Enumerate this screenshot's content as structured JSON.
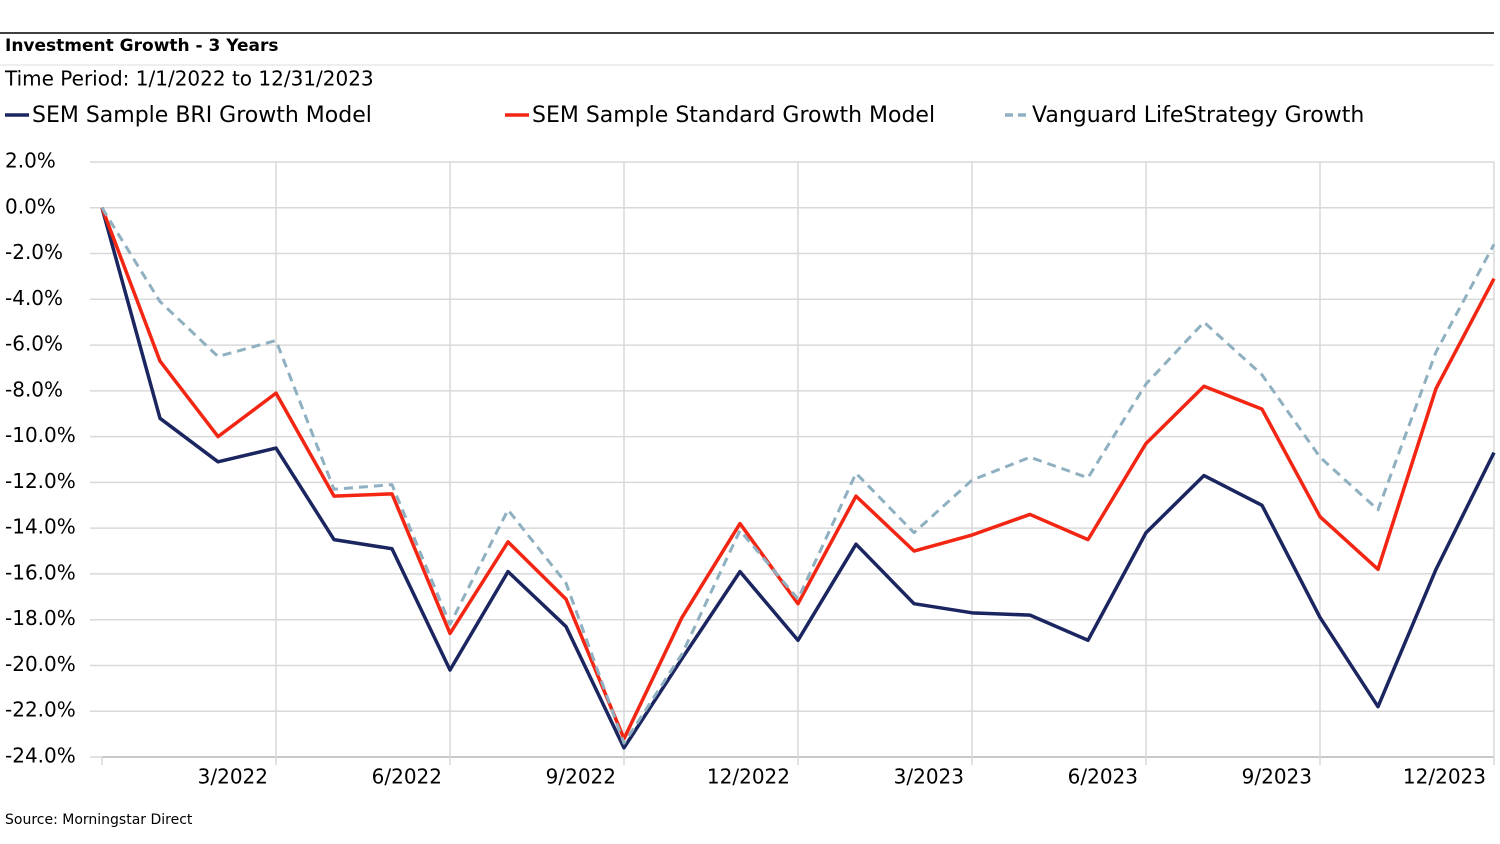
{
  "chart_data": {
    "type": "line",
    "title": "Investment Growth - 3 Years",
    "subtitle": "Time Period: 1/1/2022 to 12/31/2023",
    "source": "Source: Morningstar Direct",
    "categories": [
      null,
      null,
      null,
      "3/2022",
      null,
      null,
      "6/2022",
      null,
      null,
      "9/2022",
      null,
      null,
      "12/2022",
      null,
      null,
      "3/2023",
      null,
      null,
      "6/2023",
      null,
      null,
      "9/2023",
      null,
      null,
      "12/2023"
    ],
    "series": [
      {
        "name": "SEM Sample BRI Growth Model",
        "color": "#1b2560",
        "dashed": false,
        "values": [
          0,
          -9.2,
          -11.1,
          -10.5,
          -14.5,
          -14.9,
          -20.2,
          -15.9,
          -18.3,
          -23.6,
          -19.7,
          -15.9,
          -18.9,
          -14.7,
          -17.3,
          -17.7,
          -17.8,
          -18.9,
          -14.2,
          -11.7,
          -13.0,
          -17.9,
          -21.8,
          -15.8,
          -10.7
        ]
      },
      {
        "name": "SEM Sample Standard Growth Model",
        "color": "#f22613",
        "dashed": false,
        "values": [
          0,
          -6.7,
          -10.0,
          -8.1,
          -12.6,
          -12.5,
          -18.6,
          -14.6,
          -17.1,
          -23.2,
          -17.9,
          -13.8,
          -17.3,
          -12.6,
          -15.0,
          -14.3,
          -13.4,
          -14.5,
          -10.3,
          -7.8,
          -8.8,
          -13.5,
          -15.8,
          -7.9,
          -3.1
        ]
      },
      {
        "name": "Vanguard LifeStrategy Growth",
        "color": "#8fb0c0",
        "dashed": true,
        "values": [
          0,
          -4.1,
          -6.5,
          -5.8,
          -12.3,
          -12.1,
          -18.2,
          -13.2,
          -16.4,
          -23.4,
          -19.5,
          -14.1,
          -17.1,
          -11.6,
          -14.2,
          -11.9,
          -10.9,
          -11.8,
          -7.7,
          -5.0,
          -7.3,
          -10.9,
          -13.2,
          -6.3,
          -1.6
        ]
      }
    ],
    "ylim": [
      -24,
      2
    ],
    "yticks": [
      {
        "value": 2,
        "label": "2.0%"
      },
      {
        "value": 0,
        "label": "0.0%"
      },
      {
        "value": -2,
        "label": "-2.0%"
      },
      {
        "value": -4,
        "label": "-4.0%"
      },
      {
        "value": -6,
        "label": "-6.0%"
      },
      {
        "value": -8,
        "label": "-8.0%"
      },
      {
        "value": -10,
        "label": "-10.0%"
      },
      {
        "value": -12,
        "label": "-12.0%"
      },
      {
        "value": -14,
        "label": "-14.0%"
      },
      {
        "value": -16,
        "label": "-16.0%"
      },
      {
        "value": -18,
        "label": "-18.0%"
      },
      {
        "value": -20,
        "label": "-20.0%"
      },
      {
        "value": -22,
        "label": "-22.0%"
      },
      {
        "value": -24,
        "label": "-24.0%"
      }
    ],
    "grid": true
  }
}
